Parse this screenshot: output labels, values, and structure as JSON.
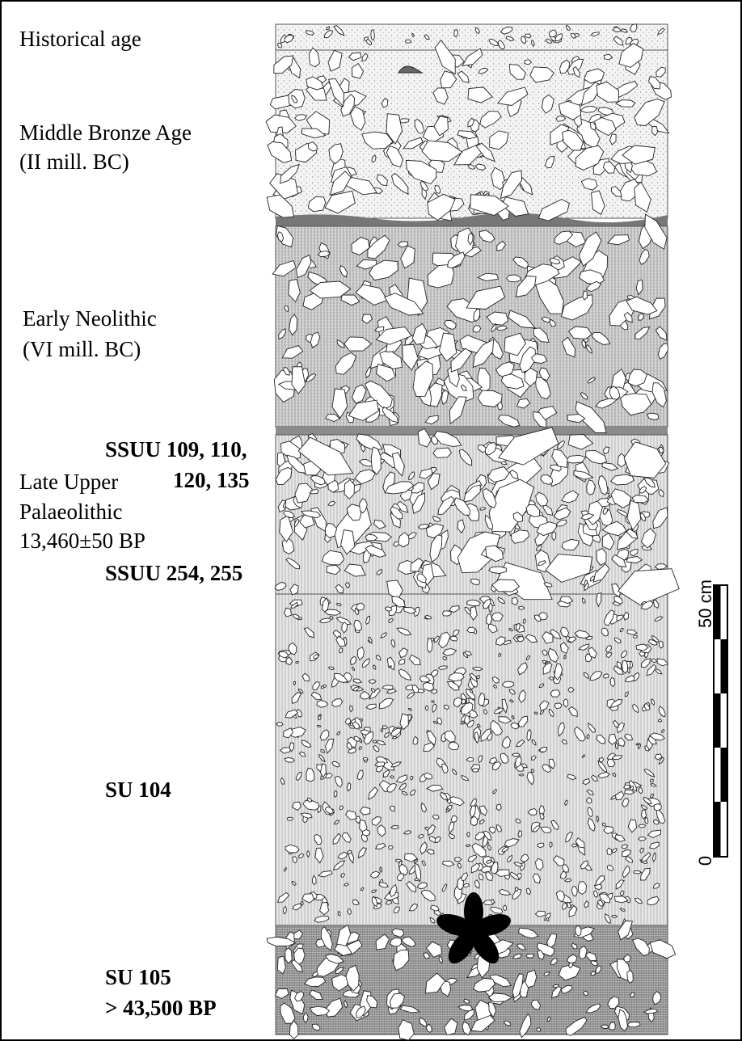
{
  "periods": [
    {
      "name_lines": [
        "Historical age"
      ]
    },
    {
      "name_lines": [
        "Middle Bronze Age"
      ],
      "date": "(II mill. BC)"
    },
    {
      "name_lines": [
        "Early Neolithic"
      ],
      "date": "(VI mill. BC)"
    },
    {
      "name_lines": [
        "Late Upper",
        "Palaeolithic"
      ],
      "date": "13,460±50 BP"
    }
  ],
  "units": [
    {
      "lines": [
        "SSUU 109, 110,",
        "120, 135"
      ]
    },
    {
      "lines": [
        "SSUU 254, 255"
      ]
    },
    {
      "lines": [
        "SU 104"
      ]
    },
    {
      "lines": [
        "SU 105",
        "> 43,500 BP"
      ]
    }
  ],
  "scale_bar": {
    "top_label": "50 cm",
    "bottom_label": "0"
  }
}
